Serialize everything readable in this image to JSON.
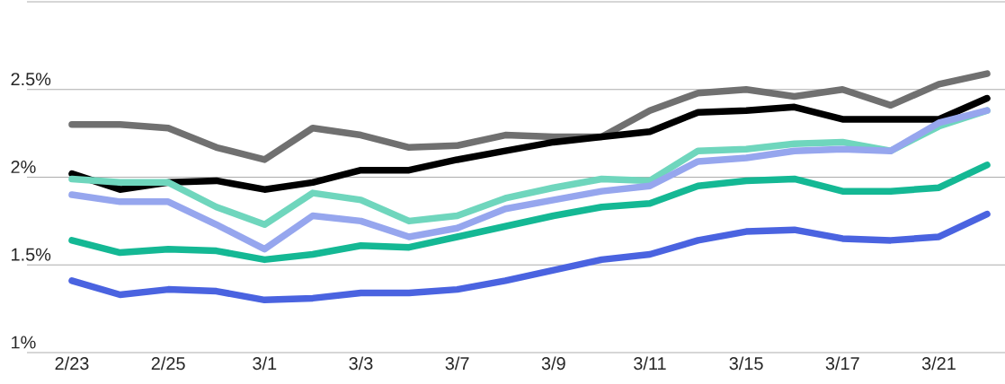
{
  "chart_data": {
    "type": "line",
    "categories": [
      "2/23",
      null,
      "2/25",
      null,
      "3/1",
      null,
      "3/3",
      null,
      "3/7",
      null,
      "3/9",
      null,
      "3/11",
      null,
      "3/15",
      null,
      "3/17",
      null,
      "3/21",
      null
    ],
    "ylim": [
      1,
      3
    ],
    "yticks": [
      {
        "value": 1,
        "label": "1%"
      },
      {
        "value": 1.5,
        "label": "1.5%"
      },
      {
        "value": 2,
        "label": "2%"
      },
      {
        "value": 2.5,
        "label": "2.5%"
      },
      {
        "value": 3,
        "label": null
      }
    ],
    "grid": "y",
    "marker": "none",
    "line_style": "solid",
    "series": [
      {
        "color": "#14b894",
        "values": [
          1.64,
          1.57,
          1.59,
          1.58,
          1.53,
          1.56,
          1.61,
          1.6,
          1.66,
          1.72,
          1.78,
          1.83,
          1.85,
          1.95,
          1.98,
          1.99,
          1.92,
          1.92,
          1.94,
          2.07
        ]
      },
      {
        "color": "#4a63e0",
        "values": [
          1.41,
          1.33,
          1.36,
          1.35,
          1.3,
          1.31,
          1.34,
          1.34,
          1.36,
          1.41,
          1.47,
          1.53,
          1.56,
          1.64,
          1.69,
          1.7,
          1.65,
          1.64,
          1.66,
          1.79
        ]
      },
      {
        "color": "#707070",
        "values": [
          2.3,
          2.3,
          2.28,
          2.17,
          2.1,
          2.28,
          2.24,
          2.17,
          2.18,
          2.24,
          2.23,
          2.23,
          2.38,
          2.48,
          2.5,
          2.46,
          2.5,
          2.41,
          2.53,
          2.59
        ]
      },
      {
        "color": "#000000",
        "values": [
          2.02,
          1.93,
          1.97,
          1.98,
          1.93,
          1.97,
          2.04,
          2.04,
          2.1,
          2.15,
          2.2,
          2.23,
          2.26,
          2.37,
          2.38,
          2.4,
          2.33,
          2.33,
          2.33,
          2.45
        ]
      },
      {
        "color": "#6fd6bd",
        "values": [
          1.99,
          1.97,
          1.97,
          1.83,
          1.73,
          1.91,
          1.87,
          1.75,
          1.78,
          1.88,
          1.94,
          1.99,
          1.98,
          2.15,
          2.16,
          2.19,
          2.2,
          2.15,
          2.29,
          2.38
        ]
      },
      {
        "color": "#96a6ee",
        "values": [
          1.9,
          1.86,
          1.86,
          1.73,
          1.59,
          1.78,
          1.75,
          1.66,
          1.71,
          1.82,
          1.87,
          1.92,
          1.95,
          2.09,
          2.11,
          2.15,
          2.16,
          2.15,
          2.31,
          2.38
        ]
      }
    ]
  }
}
